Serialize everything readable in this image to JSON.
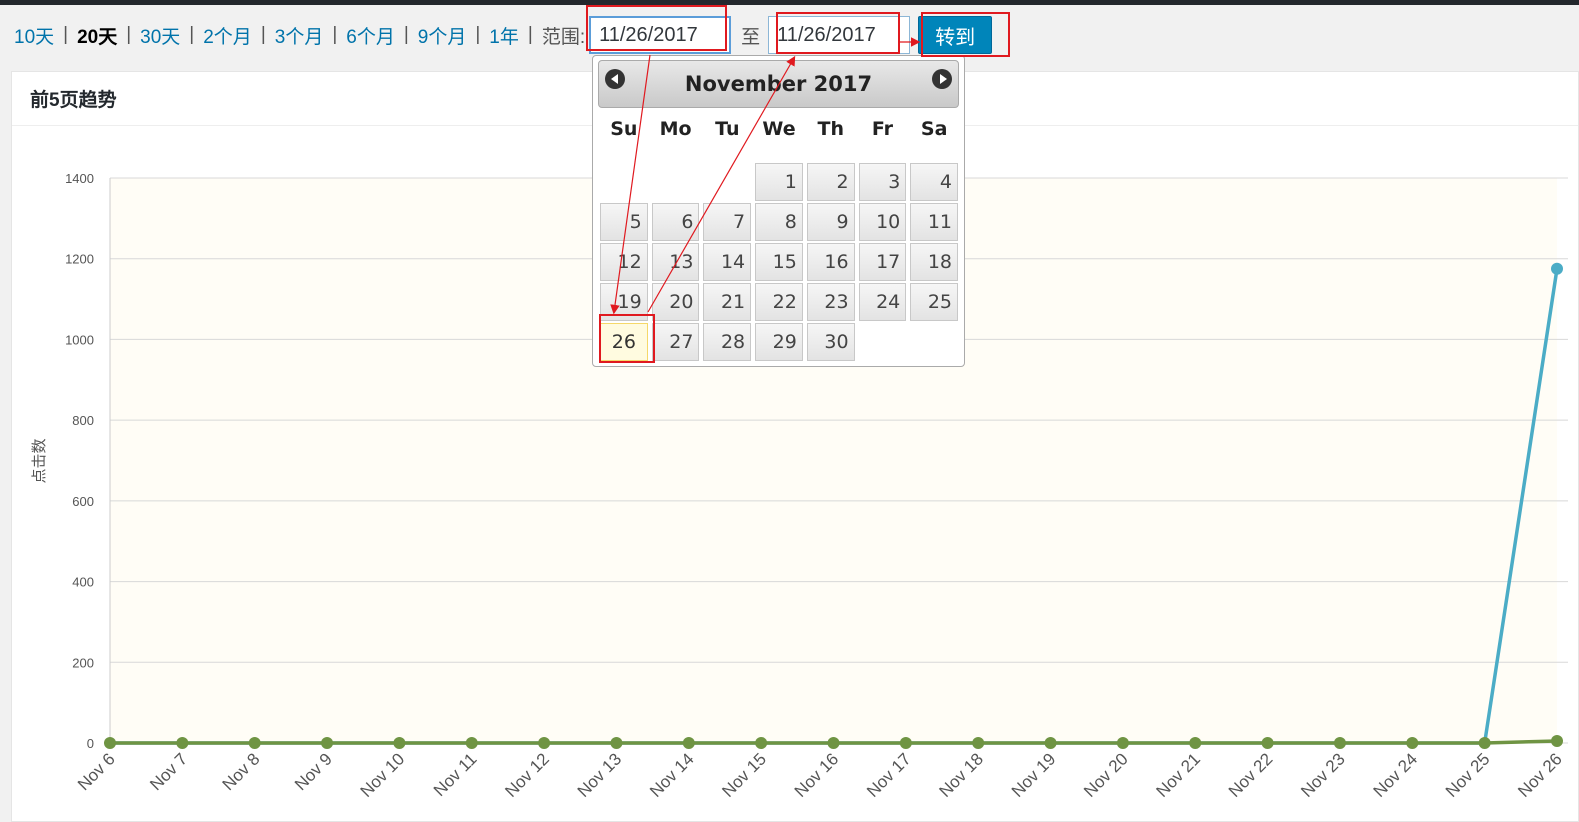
{
  "range_links": [
    {
      "label": "10天",
      "current": false
    },
    {
      "label": "20天",
      "current": true
    },
    {
      "label": "30天",
      "current": false
    },
    {
      "label": "2个月",
      "current": false
    },
    {
      "label": "3个月",
      "current": false
    },
    {
      "label": "6个月",
      "current": false
    },
    {
      "label": "9个月",
      "current": false
    },
    {
      "label": "1年",
      "current": false
    }
  ],
  "range_label": "范围:",
  "from_date": "11/26/2017",
  "to_label": "至",
  "to_date": "11/26/2017",
  "go_label": "转到",
  "panel_title": "前5页趋势",
  "datepicker": {
    "month_year": "November 2017",
    "weekdays": [
      "Su",
      "Mo",
      "Tu",
      "We",
      "Th",
      "Fr",
      "Sa"
    ],
    "leading_blanks": 3,
    "days": 30,
    "selected_day": 26
  },
  "chart_data": {
    "type": "line",
    "title": "",
    "xlabel": "",
    "ylabel": "点击数",
    "ylim": [
      0,
      1400
    ],
    "yticks": [
      0,
      200,
      400,
      600,
      800,
      1000,
      1200,
      1400
    ],
    "categories": [
      "Nov 6",
      "Nov 7",
      "Nov 8",
      "Nov 9",
      "Nov 10",
      "Nov 11",
      "Nov 12",
      "Nov 13",
      "Nov 14",
      "Nov 15",
      "Nov 16",
      "Nov 17",
      "Nov 18",
      "Nov 19",
      "Nov 20",
      "Nov 21",
      "Nov 22",
      "Nov 23",
      "Nov 24",
      "Nov 25",
      "Nov 26"
    ],
    "series": [
      {
        "color": "#4bacc6",
        "values": [
          0,
          0,
          0,
          0,
          0,
          0,
          0,
          0,
          0,
          0,
          0,
          0,
          0,
          0,
          0,
          0,
          0,
          0,
          0,
          0,
          1175
        ]
      },
      {
        "color": "#6f9443",
        "values": [
          0,
          0,
          0,
          0,
          0,
          0,
          0,
          0,
          0,
          0,
          0,
          0,
          0,
          0,
          0,
          0,
          0,
          0,
          0,
          0,
          5
        ]
      }
    ]
  }
}
